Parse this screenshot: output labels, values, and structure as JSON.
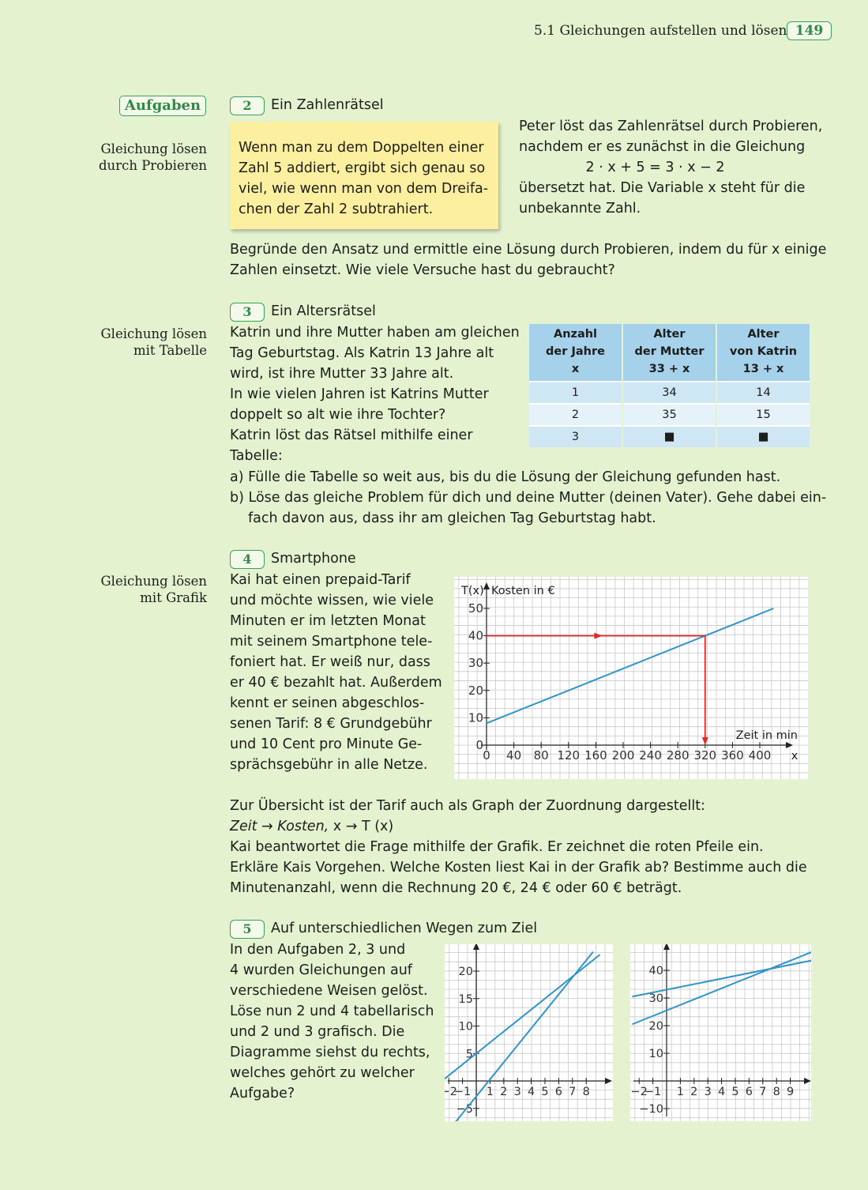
{
  "header": {
    "section": "5.1  Gleichungen aufstellen und lösen",
    "page_number": "149"
  },
  "aufgaben_label": "Aufgaben",
  "task2": {
    "number": "2",
    "title": "Ein Zahlenrätsel",
    "side_label": [
      "Gleichung lösen",
      "durch Probieren"
    ],
    "box_lines": [
      "Wenn man zu dem Doppelten einer",
      "Zahl 5 addiert, ergibt sich genau so",
      "viel, wie wenn man von dem Dreifa-",
      "chen der Zahl 2 subtrahiert."
    ],
    "right_lines": [
      "Peter löst das Zahlenrätsel durch Probieren,",
      "nachdem er es zunächst in die Gleichung"
    ],
    "equation": "2 · x + 5 = 3 · x − 2",
    "right_lines2": [
      "übersetzt hat. Die Variable x steht für die",
      "unbekannte Zahl."
    ],
    "question_lines": [
      "Begründe den Ansatz und ermittle eine Lösung durch Probieren, indem du für x einige",
      "Zahlen einsetzt. Wie viele Versuche hast du gebraucht?"
    ]
  },
  "task3": {
    "number": "3",
    "title": "Ein Altersrätsel",
    "side_label": [
      "Gleichung lösen",
      "mit Tabelle"
    ],
    "text_lines": [
      "Katrin und ihre Mutter haben am gleichen",
      "Tag Geburtstag. Als Katrin 13 Jahre alt",
      "wird, ist ihre Mutter 33 Jahre alt.",
      "In wie vielen Jahren ist Katrins Mutter",
      "doppelt so alt wie ihre Tochter?",
      "Katrin löst das Rätsel mithilfe einer Tabelle:"
    ],
    "table": {
      "headers": [
        [
          "Anzahl",
          "der Jahre",
          "x"
        ],
        [
          "Alter",
          "der Mutter",
          "33 + x"
        ],
        [
          "Alter",
          "von Katrin",
          "13 + x"
        ]
      ],
      "rows": [
        [
          "1",
          "34",
          "14"
        ],
        [
          "2",
          "35",
          "15"
        ],
        [
          "3",
          "■",
          "■"
        ]
      ]
    },
    "items": [
      {
        "label": "a)",
        "lines": [
          "Fülle die Tabelle so weit aus, bis du die Lösung der Gleichung gefunden hast."
        ]
      },
      {
        "label": "b)",
        "lines": [
          "Löse das gleiche Problem für dich und deine Mutter (deinen Vater). Gehe dabei ein-",
          "fach davon aus, dass ihr am gleichen Tag Geburtstag habt."
        ]
      }
    ]
  },
  "task4": {
    "number": "4",
    "title": "Smartphone",
    "side_label": [
      "Gleichung lösen",
      "mit Grafik"
    ],
    "text_lines": [
      "Kai hat einen prepaid-Tarif",
      "und möchte wissen, wie viele",
      "Minuten er im letzten Monat",
      "mit seinem Smartphone tele-",
      "foniert hat. Er weiß nur, dass",
      "er 40 € bezahlt hat. Außerdem",
      "kennt er seinen abgeschlos-",
      "senen Tarif: 8 € Grundgebühr",
      "und 10 Cent pro Minute Ge-",
      "sprächsgebühr in alle Netze."
    ],
    "after_lines": [
      "Zur Übersicht ist der Tarif auch als Graph der Zuordnung dargestellt:"
    ],
    "mapping_italic": "Zeit → Kosten,",
    "mapping_rest": " x → T (x)",
    "after_lines2": [
      "Kai beantwortet die Frage mithilfe der Grafik. Er zeichnet die roten Pfeile ein.",
      "Erkläre Kais Vorgehen. Welche Kosten liest Kai in der Grafik ab? Bestimme auch die",
      "Minutenanzahl, wenn die Rechnung 20 €, 24 € oder 60 € beträgt."
    ]
  },
  "task5": {
    "number": "5",
    "title": "Auf unterschiedlichen Wegen zum Ziel",
    "text_lines": [
      "In den Aufgaben 2, 3 und",
      "4 wurden Gleichungen auf",
      "verschiedene Weisen gelöst.",
      "Löse nun 2 und 4 tabellarisch",
      "und 2 und 3 grafisch. Die",
      "Diagramme siehst du rechts,",
      "welches gehört zu welcher",
      "Aufgabe?"
    ]
  },
  "colors": {
    "green": "#3aa058",
    "line_blue": "#2f94cc",
    "arrow_red": "#e02828",
    "grid": "#c8c8c8"
  },
  "chart_data": [
    {
      "type": "line",
      "ylabel": "T(x) Kosten in €",
      "xlabel": "Zeit in min",
      "x_axis_letter": "x",
      "x_ticks": [
        0,
        40,
        80,
        120,
        160,
        200,
        240,
        280,
        320,
        360,
        400
      ],
      "y_ticks": [
        0,
        10,
        20,
        30,
        40,
        50
      ],
      "xlim": [
        0,
        420
      ],
      "ylim": [
        0,
        55
      ],
      "series": [
        {
          "x": [
            0,
            420
          ],
          "y": [
            8,
            50
          ]
        }
      ],
      "arrows": [
        {
          "from": [
            0,
            40
          ],
          "to": [
            320,
            40
          ]
        },
        {
          "from": [
            320,
            40
          ],
          "to": [
            320,
            0
          ]
        }
      ],
      "grid": true
    },
    {
      "type": "line",
      "x_ticks": [
        -2,
        -1,
        1,
        2,
        3,
        4,
        5,
        6,
        7,
        8
      ],
      "y_ticks": [
        -5,
        5,
        10,
        15,
        20
      ],
      "xlim": [
        -3,
        9
      ],
      "ylim": [
        -7,
        24
      ],
      "series": [
        {
          "x": [
            -3,
            9
          ],
          "y": [
            -1,
            23
          ]
        },
        {
          "x": [
            -2,
            8.5
          ],
          "y": [
            -9,
            23.5
          ]
        }
      ],
      "grid": true
    },
    {
      "type": "line",
      "x_ticks": [
        -2,
        -1,
        1,
        2,
        3,
        4,
        5,
        6,
        7,
        8,
        9
      ],
      "y_ticks": [
        -10,
        10,
        20,
        30,
        40
      ],
      "xlim": [
        -3,
        11
      ],
      "ylim": [
        -15,
        47
      ],
      "series": [
        {
          "x": [
            -2.5,
            10.8
          ],
          "y": [
            30.5,
            43.8
          ]
        },
        {
          "x": [
            -2.5,
            10.8
          ],
          "y": [
            20.5,
            47.1
          ]
        }
      ],
      "grid": true
    }
  ]
}
